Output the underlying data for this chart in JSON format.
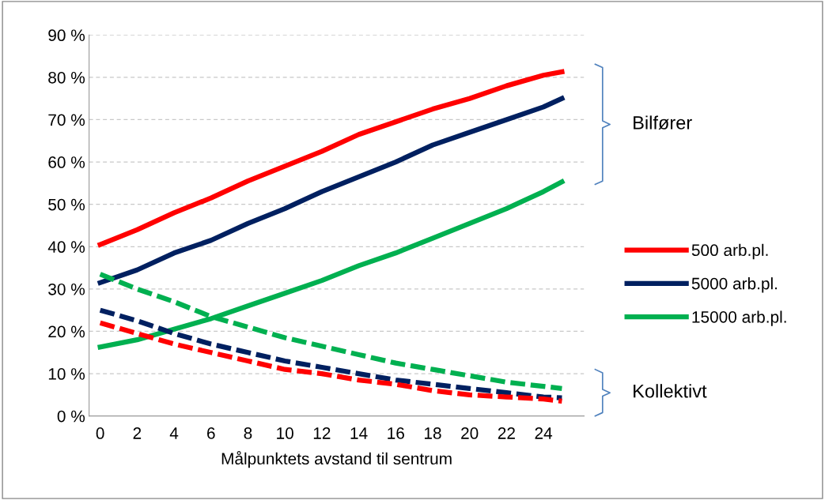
{
  "chart_data": {
    "type": "line",
    "xlabel": "Målpunktets avstand til sentrum",
    "x": [
      0,
      2,
      4,
      6,
      8,
      10,
      12,
      14,
      16,
      18,
      20,
      22,
      24,
      25
    ],
    "xlim": [
      -0.6,
      26.2
    ],
    "xticks": [
      0,
      2,
      4,
      6,
      8,
      10,
      12,
      14,
      16,
      18,
      20,
      22,
      24
    ],
    "ylim": [
      0,
      90
    ],
    "yticks": [
      {
        "value": 0,
        "label": "0 %"
      },
      {
        "value": 10,
        "label": "10 %"
      },
      {
        "value": 20,
        "label": "20 %"
      },
      {
        "value": 30,
        "label": "30 %"
      },
      {
        "value": 40,
        "label": "40 %"
      },
      {
        "value": 50,
        "label": "50 %"
      },
      {
        "value": 60,
        "label": "60 %"
      },
      {
        "value": 70,
        "label": "70 %"
      },
      {
        "value": 80,
        "label": "80 %"
      },
      {
        "value": 90,
        "label": "90 %"
      }
    ],
    "grid": "y",
    "legend": "right",
    "marker": "none",
    "annotations": [
      "Bilfører",
      "Kollektivt"
    ],
    "series": [
      {
        "name": "500 arb.pl.",
        "color": "#ff0000",
        "line_style": "solid",
        "values": [
          40.5,
          44,
          48,
          51.5,
          55.5,
          59,
          62.5,
          66.5,
          69.5,
          72.5,
          75,
          78,
          80.5,
          81.3
        ]
      },
      {
        "name": "5000 arb.pl.",
        "color": "#002060",
        "line_style": "solid",
        "values": [
          31.5,
          34.5,
          38.5,
          41.5,
          45.5,
          49,
          53,
          56.5,
          60,
          64,
          67,
          70,
          73,
          75
        ]
      },
      {
        "name": "15000 arb.pl.",
        "color": "#00b050",
        "line_style": "solid",
        "values": [
          16.3,
          18,
          20.5,
          23,
          26,
          29,
          32,
          35.5,
          38.5,
          42,
          45.5,
          49,
          53,
          55.3
        ]
      },
      {
        "color": "#00b050",
        "line_style": "dashed",
        "values": [
          33.5,
          30,
          27,
          23.5,
          21,
          18.5,
          16.5,
          14.5,
          12.5,
          11,
          9.5,
          8,
          7,
          6.5
        ]
      },
      {
        "color": "#002060",
        "line_style": "dashed",
        "values": [
          25,
          22.5,
          19.5,
          17,
          15,
          13,
          11.5,
          10,
          8.5,
          7.5,
          6.5,
          5.5,
          4.5,
          4.3
        ]
      },
      {
        "color": "#ff0000",
        "line_style": "dashed",
        "values": [
          22,
          19.5,
          17,
          15,
          13,
          11,
          10,
          8.5,
          7.5,
          6,
          5,
          4.5,
          4,
          3.5
        ]
      }
    ]
  }
}
